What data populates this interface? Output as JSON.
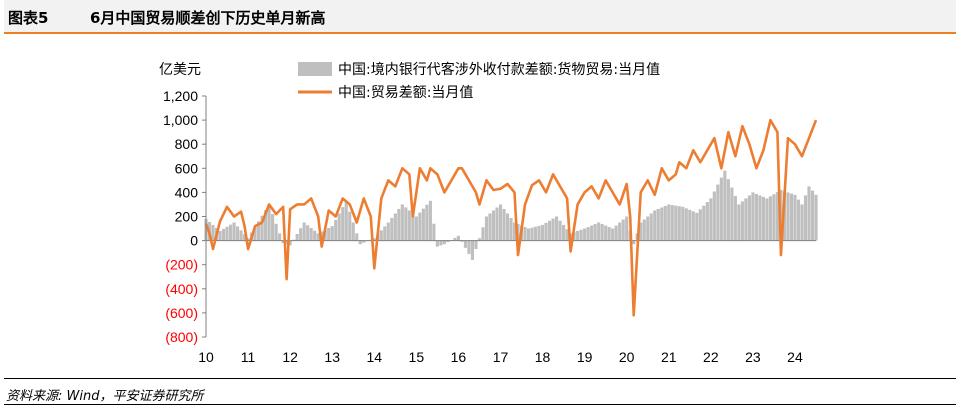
{
  "figure": {
    "number": "图表5",
    "title": "6月中国贸易顺差创下历史单月新高"
  },
  "source": "资料来源: Wind，平安证券研究所",
  "colors": {
    "bar": "#bfbfbf",
    "line": "#ed7d31",
    "negative_tick": "#ff0000",
    "header_rule": "#f07f21"
  },
  "chart_data": {
    "type": "bar+line",
    "ylabel": "亿美元",
    "ylim": [
      -800,
      1200
    ],
    "yticks": [
      1200,
      1000,
      800,
      600,
      400,
      200,
      0,
      -200,
      -400,
      -600,
      -800
    ],
    "ytick_labels": [
      "1,200",
      "1,000",
      "800",
      "600",
      "400",
      "200",
      "0",
      "(200)",
      "(400)",
      "(600)",
      "(800)"
    ],
    "xticks": [
      "10",
      "11",
      "12",
      "13",
      "14",
      "15",
      "16",
      "17",
      "18",
      "19",
      "20",
      "21",
      "22",
      "23",
      "24"
    ],
    "x_start": "2010-01",
    "x_end": "2024-06",
    "legend_position": "top",
    "series": [
      {
        "name": "中国:境内银行代客涉外收付款差额:货物贸易:当月值",
        "type": "bar",
        "monthly_anchor_values": [
          [
            0,
            180
          ],
          [
            4,
            80
          ],
          [
            8,
            150
          ],
          [
            12,
            20
          ],
          [
            18,
            300
          ],
          [
            22,
            -20
          ],
          [
            24,
            -40
          ],
          [
            28,
            150
          ],
          [
            32,
            60
          ],
          [
            36,
            120
          ],
          [
            40,
            330
          ],
          [
            44,
            -30
          ],
          [
            48,
            20
          ],
          [
            52,
            150
          ],
          [
            56,
            300
          ],
          [
            60,
            200
          ],
          [
            64,
            330
          ],
          [
            66,
            -50
          ],
          [
            68,
            -30
          ],
          [
            72,
            40
          ],
          [
            76,
            -160
          ],
          [
            80,
            200
          ],
          [
            84,
            300
          ],
          [
            88,
            150
          ],
          [
            92,
            100
          ],
          [
            96,
            130
          ],
          [
            100,
            200
          ],
          [
            104,
            60
          ],
          [
            108,
            100
          ],
          [
            112,
            150
          ],
          [
            116,
            100
          ],
          [
            120,
            200
          ],
          [
            122,
            -30
          ],
          [
            124,
            150
          ],
          [
            128,
            250
          ],
          [
            132,
            300
          ],
          [
            136,
            280
          ],
          [
            140,
            230
          ],
          [
            144,
            350
          ],
          [
            148,
            580
          ],
          [
            152,
            300
          ],
          [
            156,
            400
          ],
          [
            160,
            350
          ],
          [
            164,
            420
          ],
          [
            168,
            380
          ],
          [
            170,
            300
          ],
          [
            172,
            450
          ],
          [
            174,
            380
          ]
        ]
      },
      {
        "name": "中国:贸易差额:当月值",
        "type": "line",
        "monthly_anchor_values": [
          [
            0,
            140
          ],
          [
            1,
            60
          ],
          [
            2,
            -70
          ],
          [
            4,
            160
          ],
          [
            6,
            280
          ],
          [
            8,
            200
          ],
          [
            10,
            240
          ],
          [
            11,
            120
          ],
          [
            12,
            -70
          ],
          [
            14,
            120
          ],
          [
            16,
            150
          ],
          [
            18,
            300
          ],
          [
            20,
            220
          ],
          [
            22,
            280
          ],
          [
            23,
            -320
          ],
          [
            24,
            260
          ],
          [
            26,
            300
          ],
          [
            28,
            300
          ],
          [
            30,
            350
          ],
          [
            32,
            200
          ],
          [
            33,
            -50
          ],
          [
            35,
            250
          ],
          [
            37,
            200
          ],
          [
            39,
            350
          ],
          [
            41,
            300
          ],
          [
            43,
            150
          ],
          [
            45,
            350
          ],
          [
            47,
            200
          ],
          [
            48,
            -230
          ],
          [
            50,
            350
          ],
          [
            52,
            500
          ],
          [
            54,
            450
          ],
          [
            56,
            600
          ],
          [
            58,
            550
          ],
          [
            59,
            200
          ],
          [
            61,
            600
          ],
          [
            63,
            500
          ],
          [
            64,
            600
          ],
          [
            66,
            550
          ],
          [
            68,
            400
          ],
          [
            70,
            500
          ],
          [
            72,
            600
          ],
          [
            73,
            600
          ],
          [
            75,
            500
          ],
          [
            77,
            400
          ],
          [
            78,
            300
          ],
          [
            80,
            500
          ],
          [
            82,
            420
          ],
          [
            84,
            430
          ],
          [
            86,
            470
          ],
          [
            88,
            400
          ],
          [
            89,
            -120
          ],
          [
            91,
            300
          ],
          [
            93,
            460
          ],
          [
            95,
            500
          ],
          [
            97,
            400
          ],
          [
            99,
            550
          ],
          [
            101,
            450
          ],
          [
            103,
            350
          ],
          [
            104,
            -90
          ],
          [
            106,
            300
          ],
          [
            108,
            400
          ],
          [
            110,
            450
          ],
          [
            112,
            350
          ],
          [
            114,
            500
          ],
          [
            116,
            400
          ],
          [
            118,
            300
          ],
          [
            120,
            470
          ],
          [
            121,
            200
          ],
          [
            122,
            -620
          ],
          [
            124,
            400
          ],
          [
            126,
            500
          ],
          [
            128,
            380
          ],
          [
            130,
            600
          ],
          [
            132,
            500
          ],
          [
            134,
            550
          ],
          [
            135,
            650
          ],
          [
            137,
            600
          ],
          [
            139,
            750
          ],
          [
            141,
            650
          ],
          [
            143,
            750
          ],
          [
            145,
            850
          ],
          [
            147,
            600
          ],
          [
            149,
            900
          ],
          [
            151,
            700
          ],
          [
            153,
            950
          ],
          [
            155,
            800
          ],
          [
            157,
            600
          ],
          [
            159,
            750
          ],
          [
            161,
            1000
          ],
          [
            163,
            900
          ],
          [
            164,
            -120
          ],
          [
            166,
            850
          ],
          [
            168,
            800
          ],
          [
            170,
            700
          ],
          [
            172,
            850
          ],
          [
            174,
            1000
          ]
        ]
      }
    ]
  }
}
